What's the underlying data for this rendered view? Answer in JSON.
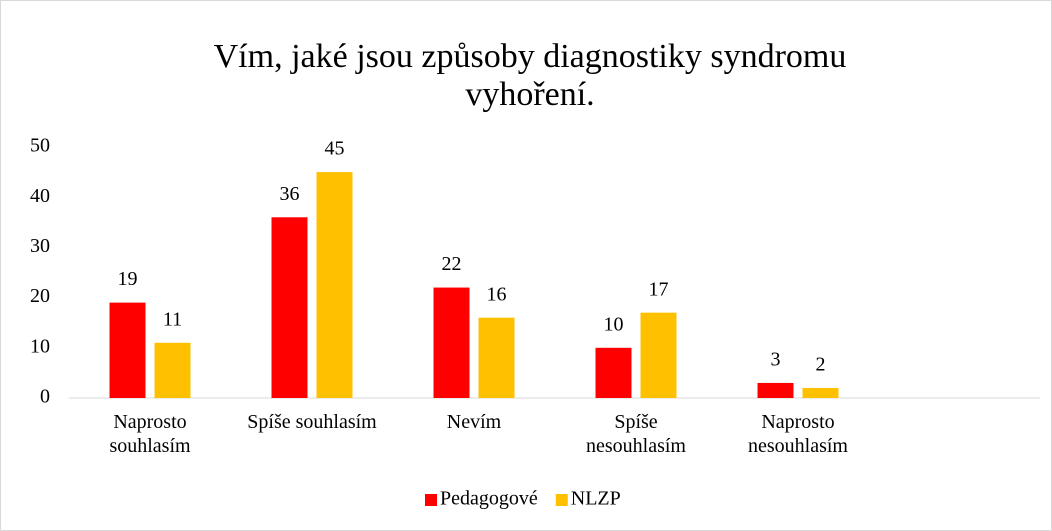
{
  "chart_data": {
    "type": "bar",
    "title": "Vím, jaké jsou způsoby diagnostiky syndromu vyhoření.",
    "categories": [
      "Naprosto souhlasím",
      "Spíše souhlasím",
      "Nevím",
      "Spíše nesouhlasím",
      "Naprosto nesouhlasím"
    ],
    "series": [
      {
        "name": "Pedagogové",
        "color": "#ff0000",
        "values": [
          19,
          36,
          22,
          10,
          3
        ]
      },
      {
        "name": "NLZP",
        "color": "#ffc000",
        "values": [
          11,
          45,
          16,
          17,
          2
        ]
      }
    ],
    "ylim": [
      0,
      50
    ],
    "yticks": [
      0,
      10,
      20,
      30,
      40,
      50
    ],
    "grid": false,
    "legend": "bottom"
  }
}
